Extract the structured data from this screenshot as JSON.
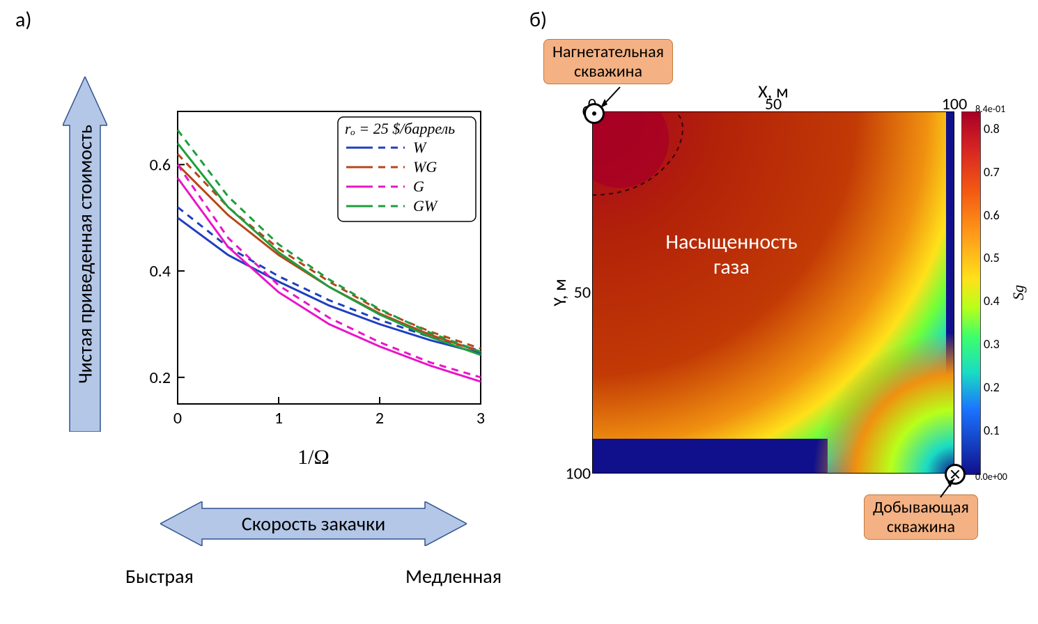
{
  "panelA_label": "а)",
  "panelB_label": "б)",
  "arrow_fill": "#b4c7e7",
  "arrow_stroke": "#2e528f",
  "panelA": {
    "y_arrow_label": "Чистая приведенная стоимость",
    "x_arrow_label": "Скорость закачки",
    "fast_label": "Быстрая",
    "slow_label": "Медленная",
    "x_axis_label": "1/Ω",
    "xlim": [
      0,
      3
    ],
    "ylim": [
      0.15,
      0.7
    ],
    "xticks": [
      0,
      1,
      2,
      3
    ],
    "yticks": [
      0.2,
      0.4,
      0.6
    ],
    "tick_fontsize": 24,
    "axis_color": "#000000",
    "axis_width": 2,
    "legend": {
      "title": "rₒ = 25 $/баррель",
      "title_style": "italic",
      "entries": [
        {
          "label": "W",
          "color": "#1f3fbf"
        },
        {
          "label": "WG",
          "color": "#b5471a"
        },
        {
          "label": "G",
          "color": "#e815c9"
        },
        {
          "label": "GW",
          "color": "#1e9e3e"
        }
      ],
      "box_stroke": "#000000",
      "fontsize": 22
    },
    "line_width": 3,
    "dash_pattern": "10 8",
    "series": [
      {
        "name": "W",
        "color": "#1f3fbf",
        "dash": false,
        "x": [
          0,
          0.5,
          1,
          1.5,
          2,
          2.5,
          3
        ],
        "y": [
          0.5,
          0.43,
          0.38,
          0.335,
          0.3,
          0.27,
          0.245
        ]
      },
      {
        "name": "W",
        "color": "#1f3fbf",
        "dash": true,
        "x": [
          0,
          0.5,
          1,
          1.5,
          2,
          2.5,
          3
        ],
        "y": [
          0.52,
          0.445,
          0.39,
          0.345,
          0.308,
          0.276,
          0.25
        ]
      },
      {
        "name": "WG",
        "color": "#b5471a",
        "dash": false,
        "x": [
          0,
          0.5,
          1,
          1.5,
          2,
          2.5,
          3
        ],
        "y": [
          0.6,
          0.505,
          0.43,
          0.37,
          0.32,
          0.28,
          0.248
        ]
      },
      {
        "name": "WG",
        "color": "#b5471a",
        "dash": true,
        "x": [
          0,
          0.5,
          1,
          1.5,
          2,
          2.5,
          3
        ],
        "y": [
          0.62,
          0.52,
          0.442,
          0.38,
          0.326,
          0.286,
          0.254
        ]
      },
      {
        "name": "G",
        "color": "#e815c9",
        "dash": false,
        "x": [
          0,
          0.5,
          1,
          1.5,
          2,
          2.5,
          3
        ],
        "y": [
          0.575,
          0.445,
          0.36,
          0.3,
          0.258,
          0.222,
          0.192
        ]
      },
      {
        "name": "G",
        "color": "#e815c9",
        "dash": true,
        "x": [
          0,
          0.5,
          1,
          1.5,
          2,
          2.5,
          3
        ],
        "y": [
          0.6,
          0.462,
          0.373,
          0.312,
          0.266,
          0.228,
          0.2
        ]
      },
      {
        "name": "GW",
        "color": "#1e9e3e",
        "dash": false,
        "x": [
          0,
          0.5,
          1,
          1.5,
          2,
          2.5,
          3
        ],
        "y": [
          0.64,
          0.52,
          0.435,
          0.37,
          0.318,
          0.276,
          0.242
        ]
      },
      {
        "name": "GW",
        "color": "#1e9e3e",
        "dash": true,
        "x": [
          0,
          0.5,
          1,
          1.5,
          2,
          2.5,
          3
        ],
        "y": [
          0.665,
          0.54,
          0.45,
          0.384,
          0.328,
          0.284,
          0.248
        ]
      }
    ]
  },
  "panelB": {
    "x_axis_label": "X, м",
    "y_axis_label": "Y, м",
    "xticks": [
      0,
      50,
      100
    ],
    "yticks": [
      0,
      50,
      100
    ],
    "heat_center_label_line1": "Насыщенность",
    "heat_center_label_line2": "газа",
    "colorbar": {
      "label": "Sg",
      "max_text": "8.4e-01",
      "min_text": "0.0e+00",
      "ticks": [
        0.8,
        0.7,
        0.6,
        0.5,
        0.4,
        0.3,
        0.2,
        0.1
      ],
      "stops": [
        {
          "p": 0,
          "c": "#a80024"
        },
        {
          "p": 10,
          "c": "#d62424"
        },
        {
          "p": 22,
          "c": "#f45a12"
        },
        {
          "p": 34,
          "c": "#ff9b1a"
        },
        {
          "p": 46,
          "c": "#ffe11a"
        },
        {
          "p": 54,
          "c": "#b8ff1a"
        },
        {
          "p": 62,
          "c": "#3eff6a"
        },
        {
          "p": 72,
          "c": "#1adbc4"
        },
        {
          "p": 82,
          "c": "#1a74ff"
        },
        {
          "p": 100,
          "c": "#10108c"
        }
      ]
    },
    "injection_label_line1": "Нагнетательная",
    "injection_label_line2": "скважина",
    "production_label_line1": "Добывающая",
    "production_label_line2": "скважина",
    "callout_fill": "#f4b183",
    "callout_stroke": "#c07a3a"
  }
}
